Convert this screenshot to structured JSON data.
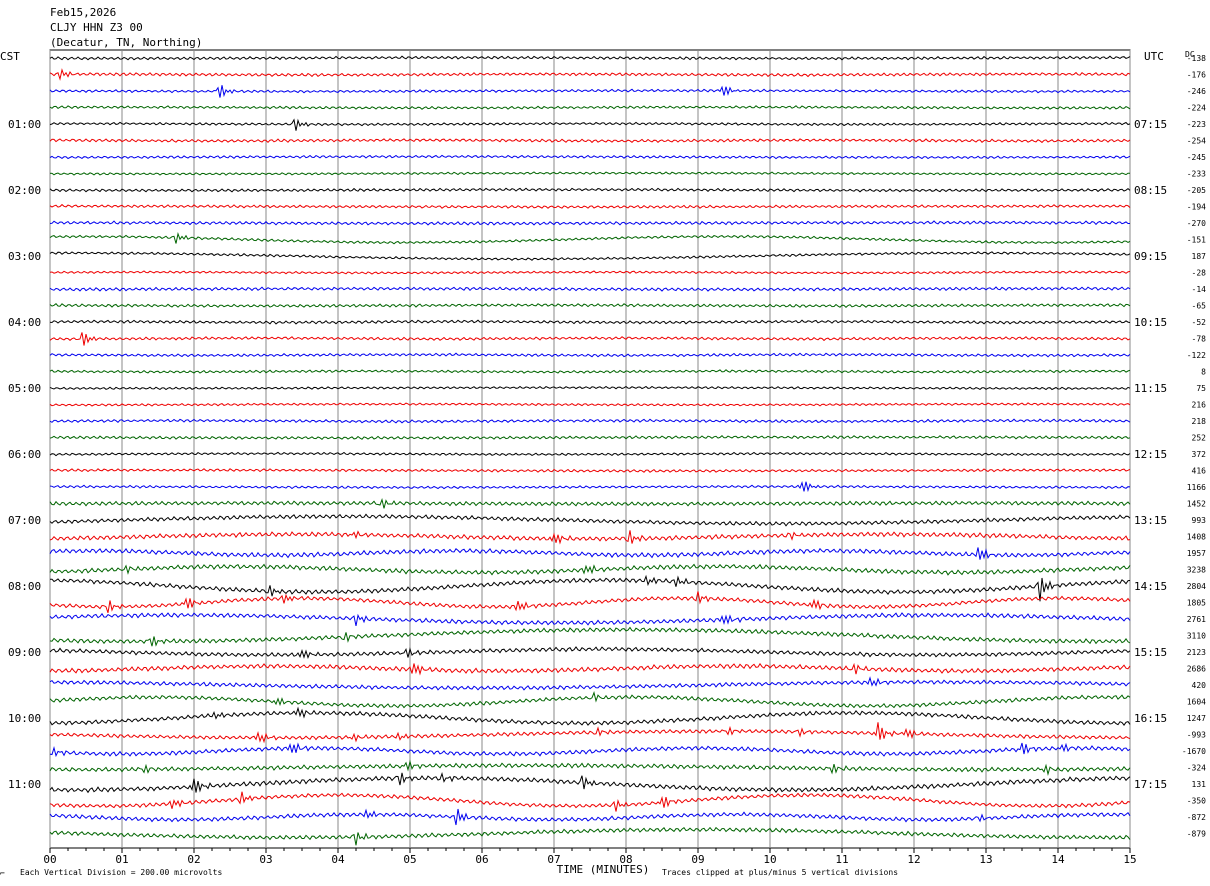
{
  "header": {
    "date": "Feb15,2026",
    "station": "CLJY HHN Z3 00",
    "location": "(Decatur, TN, Northing)"
  },
  "labels": {
    "left_tz": "CST",
    "right_tz": "UTC",
    "dc": "DC",
    "xlabel": "TIME (MINUTES)",
    "vertical_division": "Each Vertical Division =  200.00 microvolts",
    "clip_note": "Traces clipped at plus/minus 5 vertical divisions"
  },
  "chart_data": {
    "type": "line",
    "x_ticks": [
      "00",
      "01",
      "02",
      "03",
      "04",
      "05",
      "06",
      "07",
      "08",
      "09",
      "10",
      "11",
      "12",
      "13",
      "14",
      "15"
    ],
    "xlim": [
      0,
      15
    ],
    "minutes_per_line": 15,
    "line_colors": [
      "#000000",
      "#ee0000",
      "#0000ee",
      "#006400"
    ],
    "left_hour_labels": [
      {
        "line": 4,
        "text": "01:00"
      },
      {
        "line": 8,
        "text": "02:00"
      },
      {
        "line": 12,
        "text": "03:00"
      },
      {
        "line": 16,
        "text": "04:00"
      },
      {
        "line": 20,
        "text": "05:00"
      },
      {
        "line": 24,
        "text": "06:00"
      },
      {
        "line": 28,
        "text": "07:00"
      },
      {
        "line": 32,
        "text": "08:00"
      },
      {
        "line": 36,
        "text": "09:00"
      },
      {
        "line": 40,
        "text": "10:00"
      },
      {
        "line": 44,
        "text": "11:00"
      }
    ],
    "right_hour_labels": [
      {
        "line": 4,
        "text": "07:15"
      },
      {
        "line": 8,
        "text": "08:15"
      },
      {
        "line": 12,
        "text": "09:15"
      },
      {
        "line": 16,
        "text": "10:15"
      },
      {
        "line": 20,
        "text": "11:15"
      },
      {
        "line": 24,
        "text": "12:15"
      },
      {
        "line": 28,
        "text": "13:15"
      },
      {
        "line": 32,
        "text": "14:15"
      },
      {
        "line": 36,
        "text": "15:15"
      },
      {
        "line": 40,
        "text": "16:15"
      },
      {
        "line": 44,
        "text": "17:15"
      }
    ],
    "dc_offsets": [
      "-138",
      "-176",
      "-246",
      "-224",
      "-223",
      "-254",
      "-245",
      "-233",
      "-205",
      "-194",
      "-270",
      "-151",
      "187",
      "-28",
      "-14",
      "-65",
      "-52",
      "-78",
      "-122",
      "8",
      "75",
      "216",
      "218",
      "252",
      "372",
      "416",
      "1166",
      "1452",
      "993",
      "1408",
      "1957",
      "3238",
      "2804",
      "1805",
      "2761",
      "3110",
      "2123",
      "2686",
      "420",
      "1604",
      "1247",
      "-993",
      "-1670",
      "-324",
      "131",
      "-350",
      "-872",
      "-879"
    ],
    "events": [
      {
        "line": 1,
        "minute": 0.15,
        "amp": 6
      },
      {
        "line": 2,
        "minute": 2.35,
        "amp": 9
      },
      {
        "line": 2,
        "minute": 9.35,
        "amp": 8
      },
      {
        "line": 4,
        "minute": 3.4,
        "amp": 7
      },
      {
        "line": 11,
        "minute": 1.75,
        "amp": 7
      },
      {
        "line": 17,
        "minute": 0.45,
        "amp": 9
      },
      {
        "line": 26,
        "minute": 10.45,
        "amp": 9
      },
      {
        "line": 27,
        "minute": 4.6,
        "amp": 6
      },
      {
        "line": 29,
        "minute": 4.2,
        "amp": 4
      },
      {
        "line": 29,
        "minute": 7.0,
        "amp": 8
      },
      {
        "line": 29,
        "minute": 8.05,
        "amp": 8
      },
      {
        "line": 29,
        "minute": 10.3,
        "amp": 3
      },
      {
        "line": 30,
        "minute": 12.9,
        "amp": 10
      },
      {
        "line": 31,
        "minute": 1.05,
        "amp": 4
      },
      {
        "line": 31,
        "minute": 7.45,
        "amp": 7
      },
      {
        "line": 32,
        "minute": 3.05,
        "amp": 6
      },
      {
        "line": 32,
        "minute": 8.3,
        "amp": 5
      },
      {
        "line": 32,
        "minute": 8.7,
        "amp": 6
      },
      {
        "line": 32,
        "minute": 13.75,
        "amp": 14
      },
      {
        "line": 33,
        "minute": 0.8,
        "amp": 7
      },
      {
        "line": 33,
        "minute": 1.9,
        "amp": 9
      },
      {
        "line": 33,
        "minute": 3.25,
        "amp": 6
      },
      {
        "line": 33,
        "minute": 6.5,
        "amp": 7
      },
      {
        "line": 33,
        "minute": 9.0,
        "amp": 6
      },
      {
        "line": 33,
        "minute": 10.6,
        "amp": 7
      },
      {
        "line": 34,
        "minute": 4.25,
        "amp": 7
      },
      {
        "line": 34,
        "minute": 9.35,
        "amp": 9
      },
      {
        "line": 35,
        "minute": 1.4,
        "amp": 8
      },
      {
        "line": 35,
        "minute": 4.1,
        "amp": 5
      },
      {
        "line": 36,
        "minute": 3.5,
        "amp": 6
      },
      {
        "line": 36,
        "minute": 4.95,
        "amp": 7
      },
      {
        "line": 37,
        "minute": 5.05,
        "amp": 8
      },
      {
        "line": 37,
        "minute": 11.15,
        "amp": 6
      },
      {
        "line": 38,
        "minute": 11.4,
        "amp": 6
      },
      {
        "line": 39,
        "minute": 3.15,
        "amp": 6
      },
      {
        "line": 39,
        "minute": 7.55,
        "amp": 5
      },
      {
        "line": 40,
        "minute": 2.3,
        "amp": 4
      },
      {
        "line": 40,
        "minute": 3.45,
        "amp": 7
      },
      {
        "line": 41,
        "minute": 2.9,
        "amp": 8
      },
      {
        "line": 41,
        "minute": 4.2,
        "amp": 4
      },
      {
        "line": 41,
        "minute": 4.85,
        "amp": 5
      },
      {
        "line": 41,
        "minute": 7.6,
        "amp": 4
      },
      {
        "line": 41,
        "minute": 9.4,
        "amp": 5
      },
      {
        "line": 41,
        "minute": 10.4,
        "amp": 5
      },
      {
        "line": 41,
        "minute": 11.5,
        "amp": 12
      },
      {
        "line": 41,
        "minute": 11.9,
        "amp": 7
      },
      {
        "line": 42,
        "minute": 0.05,
        "amp": 5
      },
      {
        "line": 42,
        "minute": 3.35,
        "amp": 9
      },
      {
        "line": 42,
        "minute": 13.5,
        "amp": 8
      },
      {
        "line": 42,
        "minute": 14.05,
        "amp": 6
      },
      {
        "line": 43,
        "minute": 1.3,
        "amp": 4
      },
      {
        "line": 43,
        "minute": 4.95,
        "amp": 7
      },
      {
        "line": 43,
        "minute": 10.85,
        "amp": 6
      },
      {
        "line": 43,
        "minute": 13.8,
        "amp": 6
      },
      {
        "line": 44,
        "minute": 2.0,
        "amp": 12
      },
      {
        "line": 44,
        "minute": 4.85,
        "amp": 8
      },
      {
        "line": 44,
        "minute": 5.45,
        "amp": 5
      },
      {
        "line": 44,
        "minute": 7.4,
        "amp": 9
      },
      {
        "line": 45,
        "minute": 1.7,
        "amp": 7
      },
      {
        "line": 45,
        "minute": 2.65,
        "amp": 7
      },
      {
        "line": 45,
        "minute": 7.85,
        "amp": 6
      },
      {
        "line": 45,
        "minute": 8.5,
        "amp": 8
      },
      {
        "line": 46,
        "minute": 4.4,
        "amp": 6
      },
      {
        "line": 46,
        "minute": 5.65,
        "amp": 10
      },
      {
        "line": 46,
        "minute": 12.9,
        "amp": 4
      },
      {
        "line": 47,
        "minute": 4.25,
        "amp": 7
      }
    ]
  }
}
